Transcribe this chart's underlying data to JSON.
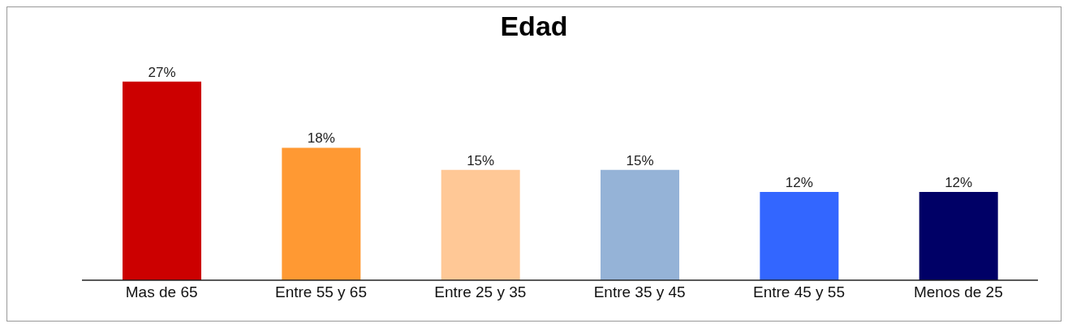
{
  "chart_data": {
    "type": "bar",
    "title": "Edad",
    "categories": [
      "Mas de 65",
      "Entre 55 y 65",
      "Entre 25 y 35",
      "Entre 35 y 45",
      "Entre 45 y 55",
      "Menos de 25"
    ],
    "values": [
      27,
      18,
      15,
      15,
      12,
      12
    ],
    "value_labels": [
      "27%",
      "18%",
      "15%",
      "15%",
      "12%",
      "12%"
    ],
    "colors": [
      "#cc0000",
      "#ff9933",
      "#ffc896",
      "#95b3d7",
      "#3366ff",
      "#000066"
    ],
    "grid": false,
    "legend": false
  }
}
